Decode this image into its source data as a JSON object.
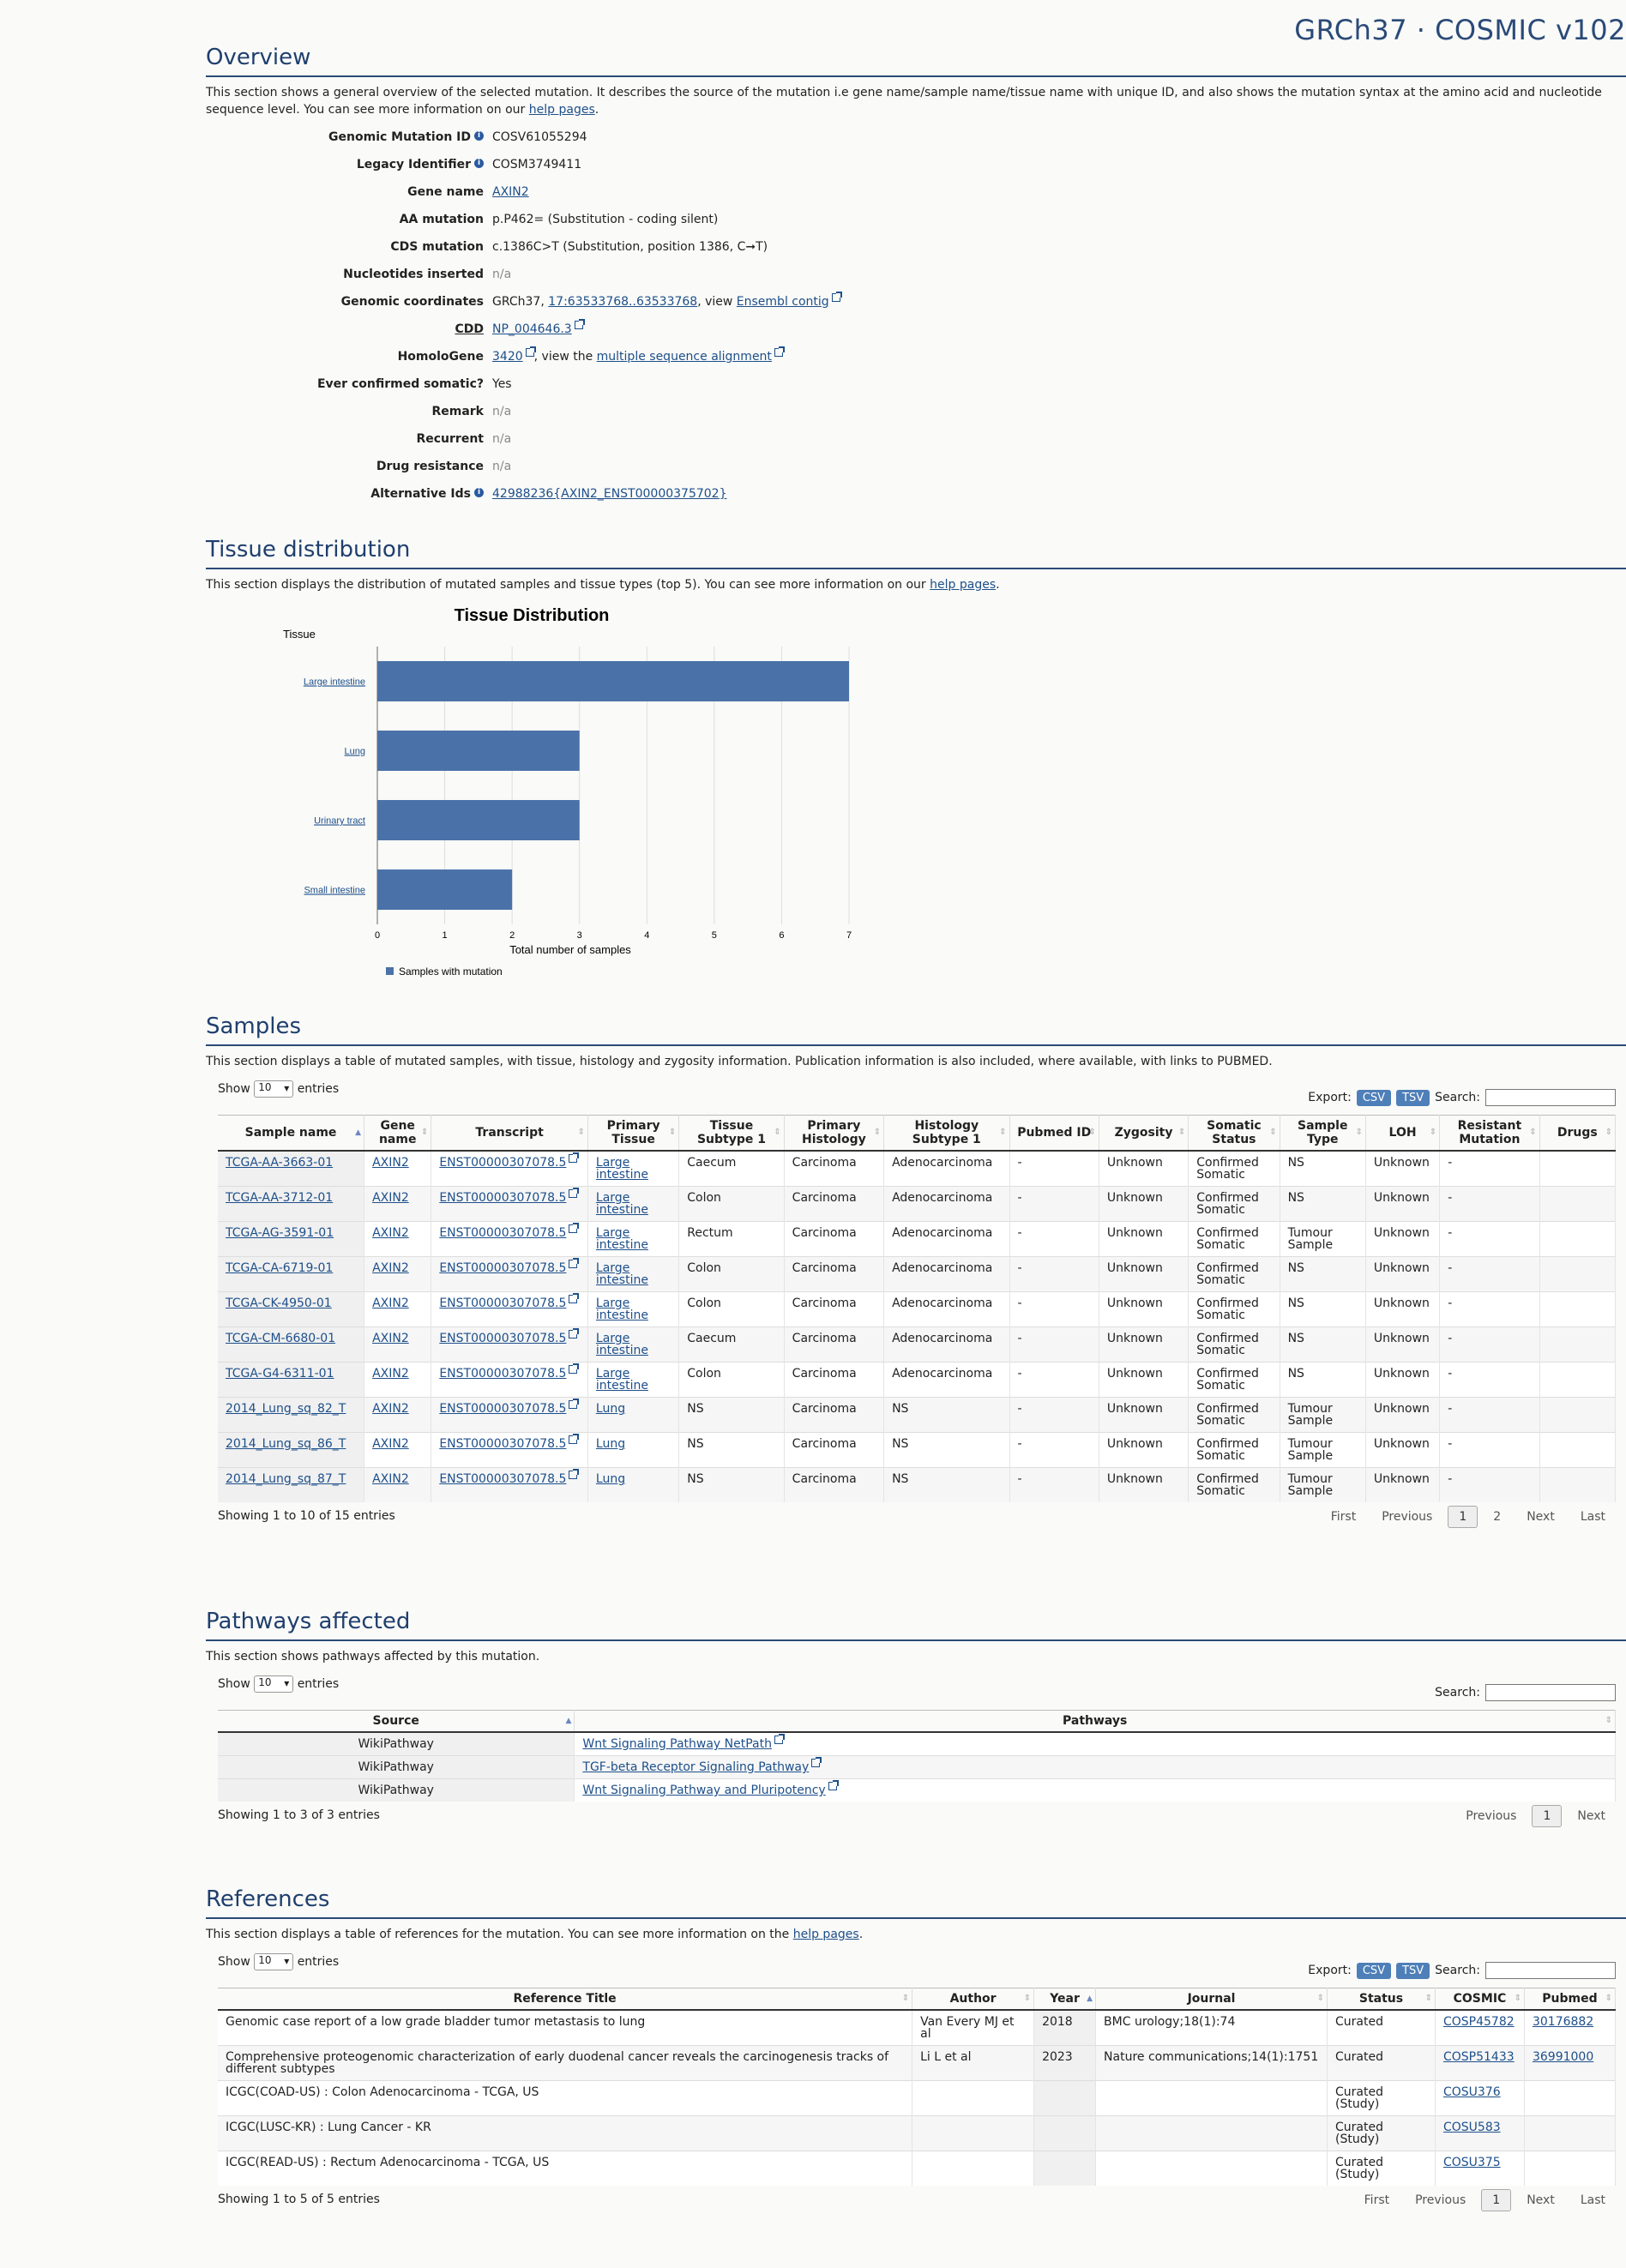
{
  "page_title": "GRCh37 · COSMIC v102",
  "overview": {
    "heading": "Overview",
    "desc_pre": "This section shows a general overview of the selected mutation. It describes the source of the mutation i.e gene name/sample name/tissue name with unique ID, and also shows the mutation syntax at the amino acid and nucleotide sequence level. You can see more information on our ",
    "desc_link": "help pages",
    "desc_post": ".",
    "fields": {
      "genomic_mutation_id": {
        "label": "Genomic Mutation ID",
        "value": "COSV61055294"
      },
      "legacy_identifier": {
        "label": "Legacy Identifier",
        "value": "COSM3749411"
      },
      "gene_name": {
        "label": "Gene name",
        "value": "AXIN2"
      },
      "aa_mutation": {
        "label": "AA mutation",
        "value": "p.P462= (Substitution - coding silent)"
      },
      "cds_mutation": {
        "label": "CDS mutation",
        "value": "c.1386C>T (Substitution, position 1386, C➞T)"
      },
      "nucleotides_inserted": {
        "label": "Nucleotides inserted",
        "value": "n/a"
      },
      "genomic_coordinates": {
        "label": "Genomic coordinates",
        "prefix": "GRCh37, ",
        "coord_link": "17:63533768..63533768",
        "mid": ", view ",
        "contig_link": "Ensembl contig"
      },
      "cdd": {
        "label": "CDD",
        "value": "NP_004646.3"
      },
      "homologene": {
        "label": "HomoloGene",
        "value": "3420",
        "mid": ", view the ",
        "msa_link": "multiple sequence alignment"
      },
      "ever_confirmed": {
        "label": "Ever confirmed somatic?",
        "value": "Yes"
      },
      "remark": {
        "label": "Remark",
        "value": "n/a"
      },
      "recurrent": {
        "label": "Recurrent",
        "value": "n/a"
      },
      "drug_resistance": {
        "label": "Drug resistance",
        "value": "n/a"
      },
      "alternative_ids": {
        "label": "Alternative Ids",
        "value": "42988236{AXIN2_ENST00000375702}"
      }
    }
  },
  "tissue": {
    "heading": "Tissue distribution",
    "desc_pre": "This section displays the distribution of mutated samples and tissue types (top 5). You can see more information on our ",
    "desc_link": "help pages",
    "desc_post": "."
  },
  "chart_data": {
    "type": "bar",
    "orientation": "horizontal",
    "title": "Tissue Distribution",
    "ylabel": "Tissue",
    "xlabel": "Total number of samples",
    "categories": [
      "Large intestine",
      "Lung",
      "Urinary tract",
      "Small intestine"
    ],
    "series": [
      {
        "name": "Samples with mutation",
        "values": [
          7,
          3,
          3,
          2
        ],
        "color": "#4a72a8"
      }
    ],
    "xlim": [
      0,
      7
    ],
    "xticks": [
      0,
      1,
      2,
      3,
      4,
      5,
      6,
      7
    ],
    "grid": true,
    "legend_position": "bottom-left"
  },
  "samples": {
    "heading": "Samples",
    "desc": "This section displays a table of mutated samples, with tissue, histology and zygosity information. Publication information is also included, where available, with links to PUBMED.",
    "show_label": "Show",
    "show_value": "10",
    "entries_label": "entries",
    "export_label": "Export:",
    "csv": "CSV",
    "tsv": "TSV",
    "search_label": "Search:",
    "columns": [
      "Sample name",
      "Gene name",
      "Transcript",
      "Primary Tissue",
      "Tissue Subtype 1",
      "Primary Histology",
      "Histology Subtype 1",
      "Pubmed ID",
      "Zygosity",
      "Somatic Status",
      "Sample Type",
      "LOH",
      "Resistant Mutation",
      "Drugs"
    ],
    "rows": [
      [
        "TCGA-AA-3663-01",
        "AXIN2",
        "ENST00000307078.5",
        "Large intestine",
        "Caecum",
        "Carcinoma",
        "Adenocarcinoma",
        "-",
        "Unknown",
        "Confirmed Somatic",
        "NS",
        "Unknown",
        "-",
        ""
      ],
      [
        "TCGA-AA-3712-01",
        "AXIN2",
        "ENST00000307078.5",
        "Large intestine",
        "Colon",
        "Carcinoma",
        "Adenocarcinoma",
        "-",
        "Unknown",
        "Confirmed Somatic",
        "NS",
        "Unknown",
        "-",
        ""
      ],
      [
        "TCGA-AG-3591-01",
        "AXIN2",
        "ENST00000307078.5",
        "Large intestine",
        "Rectum",
        "Carcinoma",
        "Adenocarcinoma",
        "-",
        "Unknown",
        "Confirmed Somatic",
        "Tumour Sample",
        "Unknown",
        "-",
        ""
      ],
      [
        "TCGA-CA-6719-01",
        "AXIN2",
        "ENST00000307078.5",
        "Large intestine",
        "Colon",
        "Carcinoma",
        "Adenocarcinoma",
        "-",
        "Unknown",
        "Confirmed Somatic",
        "NS",
        "Unknown",
        "-",
        ""
      ],
      [
        "TCGA-CK-4950-01",
        "AXIN2",
        "ENST00000307078.5",
        "Large intestine",
        "Colon",
        "Carcinoma",
        "Adenocarcinoma",
        "-",
        "Unknown",
        "Confirmed Somatic",
        "NS",
        "Unknown",
        "-",
        ""
      ],
      [
        "TCGA-CM-6680-01",
        "AXIN2",
        "ENST00000307078.5",
        "Large intestine",
        "Caecum",
        "Carcinoma",
        "Adenocarcinoma",
        "-",
        "Unknown",
        "Confirmed Somatic",
        "NS",
        "Unknown",
        "-",
        ""
      ],
      [
        "TCGA-G4-6311-01",
        "AXIN2",
        "ENST00000307078.5",
        "Large intestine",
        "Colon",
        "Carcinoma",
        "Adenocarcinoma",
        "-",
        "Unknown",
        "Confirmed Somatic",
        "NS",
        "Unknown",
        "-",
        ""
      ],
      [
        "2014_Lung_sq_82_T",
        "AXIN2",
        "ENST00000307078.5",
        "Lung",
        "NS",
        "Carcinoma",
        "NS",
        "-",
        "Unknown",
        "Confirmed Somatic",
        "Tumour Sample",
        "Unknown",
        "-",
        ""
      ],
      [
        "2014_Lung_sq_86_T",
        "AXIN2",
        "ENST00000307078.5",
        "Lung",
        "NS",
        "Carcinoma",
        "NS",
        "-",
        "Unknown",
        "Confirmed Somatic",
        "Tumour Sample",
        "Unknown",
        "-",
        ""
      ],
      [
        "2014_Lung_sq_87_T",
        "AXIN2",
        "ENST00000307078.5",
        "Lung",
        "NS",
        "Carcinoma",
        "NS",
        "-",
        "Unknown",
        "Confirmed Somatic",
        "Tumour Sample",
        "Unknown",
        "-",
        ""
      ]
    ],
    "info": "Showing 1 to 10 of 15 entries",
    "pager": [
      "First",
      "Previous",
      "1",
      "2",
      "Next",
      "Last"
    ]
  },
  "pathways": {
    "heading": "Pathways affected",
    "desc": "This section shows pathways affected by this mutation.",
    "show_label": "Show",
    "show_value": "10",
    "entries_label": "entries",
    "search_label": "Search:",
    "columns": [
      "Source",
      "Pathways"
    ],
    "rows": [
      [
        "WikiPathway",
        "Wnt Signaling Pathway NetPath"
      ],
      [
        "WikiPathway",
        "TGF-beta Receptor Signaling Pathway"
      ],
      [
        "WikiPathway",
        "Wnt Signaling Pathway and Pluripotency"
      ]
    ],
    "info": "Showing 1 to 3 of 3 entries",
    "pager": [
      "Previous",
      "1",
      "Next"
    ]
  },
  "references": {
    "heading": "References",
    "desc_pre": "This section displays a table of references for the mutation. You can see more information on the ",
    "desc_link": "help pages",
    "desc_post": ".",
    "show_label": "Show",
    "show_value": "10",
    "entries_label": "entries",
    "export_label": "Export:",
    "csv": "CSV",
    "tsv": "TSV",
    "search_label": "Search:",
    "columns": [
      "Reference Title",
      "Author",
      "Year",
      "Journal",
      "Status",
      "COSMIC",
      "Pubmed"
    ],
    "rows": [
      [
        "Genomic case report of a low grade bladder tumor metastasis to lung",
        "Van Every MJ et al",
        "2018",
        "BMC urology;18(1):74",
        "Curated",
        "COSP45782",
        "30176882"
      ],
      [
        "Comprehensive proteogenomic characterization of early duodenal cancer reveals the carcinogenesis tracks of different subtypes",
        "Li L et al",
        "2023",
        "Nature communications;14(1):1751",
        "Curated",
        "COSP51433",
        "36991000"
      ],
      [
        "ICGC(COAD-US) : Colon Adenocarcinoma - TCGA, US",
        "",
        "",
        "",
        "Curated (Study)",
        "COSU376",
        ""
      ],
      [
        "ICGC(LUSC-KR) : Lung Cancer - KR",
        "",
        "",
        "",
        "Curated (Study)",
        "COSU583",
        ""
      ],
      [
        "ICGC(READ-US) : Rectum Adenocarcinoma - TCGA, US",
        "",
        "",
        "",
        "Curated (Study)",
        "COSU375",
        ""
      ]
    ],
    "info": "Showing 1 to 5 of 5 entries",
    "pager": [
      "First",
      "Previous",
      "1",
      "Next",
      "Last"
    ]
  }
}
